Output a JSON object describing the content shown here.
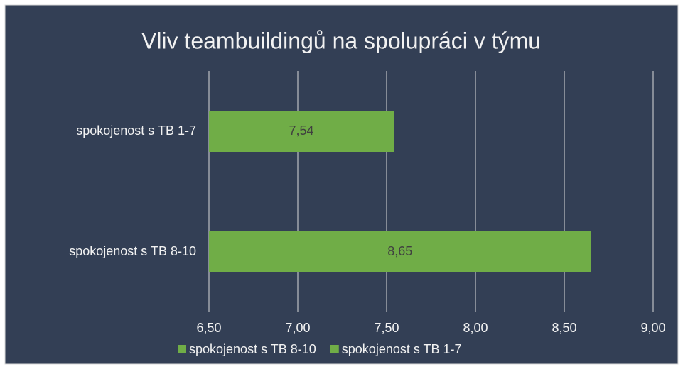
{
  "chart_data": {
    "type": "bar",
    "orientation": "horizontal",
    "title": "Vliv teambuildingů na spolupráci v týmu",
    "series": [
      {
        "name": "spokojenost s TB 8-10",
        "color": "#70ad47",
        "values": [
          8.65
        ],
        "value_labels": [
          "8,65"
        ]
      },
      {
        "name": "spokojenost s TB 1-7",
        "color": "#70ad47",
        "values": [
          7.54
        ],
        "value_labels": [
          "7,54"
        ]
      }
    ],
    "xlim": [
      6.5,
      9.0
    ],
    "xticks": [
      {
        "value": 6.5,
        "label": "6,50"
      },
      {
        "value": 7.0,
        "label": "7,00"
      },
      {
        "value": 7.5,
        "label": "7,50"
      },
      {
        "value": 8.0,
        "label": "8,00"
      },
      {
        "value": 8.5,
        "label": "8,50"
      },
      {
        "value": 9.0,
        "label": "9,00"
      }
    ],
    "grid": true,
    "legend": "bottom"
  }
}
